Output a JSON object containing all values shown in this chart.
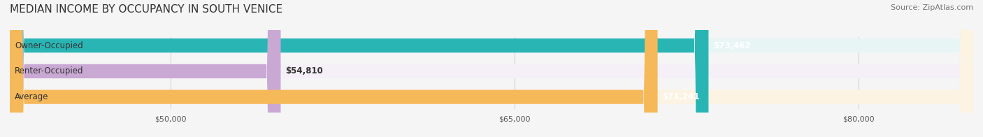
{
  "title": "MEDIAN INCOME BY OCCUPANCY IN SOUTH VENICE",
  "source": "Source: ZipAtlas.com",
  "categories": [
    "Owner-Occupied",
    "Renter-Occupied",
    "Average"
  ],
  "values": [
    73462,
    54810,
    71241
  ],
  "bar_colors": [
    "#2ab5b5",
    "#c9a8d4",
    "#f5b95a"
  ],
  "bar_bg_colors": [
    "#e8f5f5",
    "#f5f0f7",
    "#fdf3e3"
  ],
  "value_labels": [
    "$73,462",
    "$54,810",
    "$71,241"
  ],
  "x_min": 43000,
  "x_max": 85000,
  "x_ticks": [
    50000,
    65000,
    80000
  ],
  "x_tick_labels": [
    "$50,000",
    "$65,000",
    "$80,000"
  ],
  "bar_height": 0.55,
  "bg_color": "#f5f5f5",
  "title_fontsize": 11,
  "source_fontsize": 8,
  "label_fontsize": 8.5,
  "value_fontsize": 8.5
}
